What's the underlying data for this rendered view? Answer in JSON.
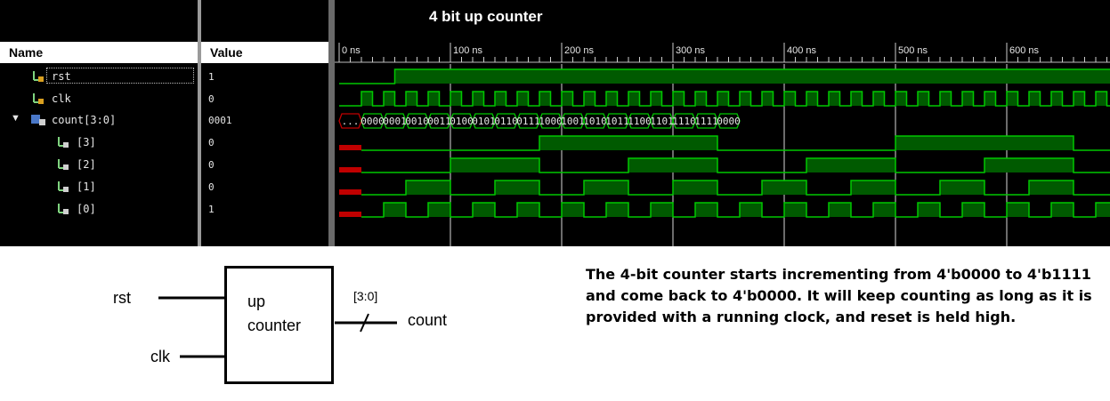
{
  "waveform": {
    "title": "4 bit up counter",
    "name_header": "Name",
    "value_header": "Value",
    "time_labels": [
      "0 ns",
      "100 ns",
      "200 ns",
      "300 ns",
      "400 ns",
      "500 ns",
      "600 ns"
    ],
    "signals": [
      {
        "name": "rst",
        "value": "1"
      },
      {
        "name": "clk",
        "value": "0"
      },
      {
        "name": "count[3:0]",
        "value": "0001"
      },
      {
        "name": "[3]",
        "value": "0"
      },
      {
        "name": "[2]",
        "value": "0"
      },
      {
        "name": "[1]",
        "value": "0"
      },
      {
        "name": "[0]",
        "value": "1"
      }
    ],
    "bus_values": [
      "...",
      "0000",
      "0001",
      "0010",
      "0011",
      "0100",
      "0101",
      "0110",
      "0111",
      "1000",
      "1001",
      "1010",
      "1011",
      "1100",
      "1101",
      "1110",
      "1111",
      "0000"
    ],
    "colors": {
      "wave": "#00c800",
      "fill": "#005a00",
      "unknown": "#c00000"
    }
  },
  "block": {
    "label_line1": "up",
    "label_line2": "counter",
    "input_rst": "rst",
    "input_clk": "clk",
    "output": "count",
    "bus_width": "[3:0]"
  },
  "description": "The 4-bit counter starts incrementing from 4'b0000 to 4'b1111 and come back to 4'b0000. It will keep counting as long as it is provided with a running clock, and reset is held high."
}
